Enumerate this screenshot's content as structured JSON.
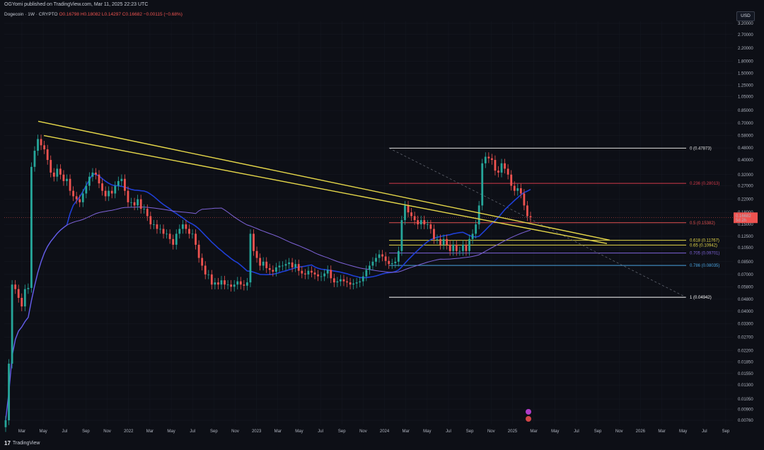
{
  "header": {
    "publish_line": "OGYomi published on TradingView.com, Mar 11, 2025 22:23 UTC"
  },
  "legend": {
    "symbol": "Dogecoin · 1W · CRYPTO",
    "open": "O0.16798",
    "high": "H0.18082",
    "low": "L0.14297",
    "close": "C0.16682",
    "change": "−0.00115 (−0.68%)"
  },
  "currency_button": "USD",
  "footer": {
    "brand": "TradingView",
    "logo_mark": "17"
  },
  "colors": {
    "background": "#0d0f16",
    "up_candle": "#26a69a",
    "down_candle": "#ef5350",
    "trendline": "#e6d84a",
    "ma_blue": "#1f3fd6",
    "ma_purple": "#7e63d8"
  },
  "chart_data": {
    "type": "candlestick",
    "title": "",
    "y_scale": "log",
    "y_ticks": [
      "3.20000",
      "2.70000",
      "2.20000",
      "1.80000",
      "1.50000",
      "1.25000",
      "1.05000",
      "0.85000",
      "0.70000",
      "0.58000",
      "0.48000",
      "0.40000",
      "0.32000",
      "0.27000",
      "0.22000",
      "0.18000",
      "0.15000",
      "0.12500",
      "0.10500",
      "0.08500",
      "0.07000",
      "0.05800",
      "0.04800",
      "0.04000",
      "0.03300",
      "0.02700",
      "0.02200",
      "0.01850",
      "0.01550",
      "0.01300",
      "0.01050",
      "0.00900",
      "0.00760"
    ],
    "x_ticks": [
      "Mar",
      "May",
      "Jul",
      "Sep",
      "Nov",
      "2022",
      "Mar",
      "May",
      "Jul",
      "Sep",
      "Nov",
      "2023",
      "Mar",
      "May",
      "Jul",
      "Sep",
      "Nov",
      "2024",
      "Mar",
      "May",
      "Jul",
      "Sep",
      "Nov",
      "2025",
      "Mar",
      "May",
      "Jul",
      "Sep",
      "Nov",
      "2026",
      "Mar",
      "May",
      "Jul",
      "Sep"
    ],
    "current_price": "0.16682",
    "countdown": "5d 2h",
    "fib_levels": [
      {
        "label": "0 (0.47873)",
        "value": 0.47873,
        "color": "#e0e0e0"
      },
      {
        "label": "0.236 (0.28013)",
        "value": 0.28013,
        "color": "#d33a4a"
      },
      {
        "label": "0.5 (0.15382)",
        "value": 0.15382,
        "color": "#e05050"
      },
      {
        "label": "0.618 (0.11767)",
        "value": 0.11767,
        "color": "#e6d84a"
      },
      {
        "label": "0.65 (0.10942)",
        "value": 0.10942,
        "color": "#e6d84a"
      },
      {
        "label": "0.705 (0.09701)",
        "value": 0.09701,
        "color": "#7e63d8"
      },
      {
        "label": "0.786 (0.08035)",
        "value": 0.08035,
        "color": "#4aa3df"
      },
      {
        "label": "1 (0.04942)",
        "value": 0.04942,
        "color": "#ffffff"
      }
    ],
    "series": [
      {
        "name": "",
        "closes": [
          0.0076,
          0.018,
          0.06,
          0.056,
          0.049,
          0.043,
          0.056,
          0.057,
          0.36,
          0.46,
          0.55,
          0.5,
          0.47,
          0.4,
          0.33,
          0.31,
          0.35,
          0.32,
          0.29,
          0.3,
          0.25,
          0.23,
          0.22,
          0.21,
          0.24,
          0.27,
          0.31,
          0.33,
          0.32,
          0.28,
          0.25,
          0.23,
          0.25,
          0.24,
          0.27,
          0.29,
          0.3,
          0.25,
          0.21,
          0.21,
          0.2,
          0.22,
          0.19,
          0.19,
          0.17,
          0.15,
          0.15,
          0.14,
          0.14,
          0.13,
          0.13,
          0.12,
          0.11,
          0.13,
          0.14,
          0.15,
          0.14,
          0.13,
          0.13,
          0.11,
          0.09,
          0.08,
          0.07,
          0.07,
          0.06,
          0.062,
          0.06,
          0.064,
          0.06,
          0.06,
          0.058,
          0.06,
          0.063,
          0.06,
          0.059,
          0.062,
          0.13,
          0.1,
          0.09,
          0.08,
          0.085,
          0.077,
          0.075,
          0.073,
          0.078,
          0.08,
          0.08,
          0.082,
          0.084,
          0.078,
          0.082,
          0.074,
          0.071,
          0.07,
          0.074,
          0.072,
          0.07,
          0.068,
          0.068,
          0.071,
          0.075,
          0.066,
          0.062,
          0.063,
          0.065,
          0.063,
          0.062,
          0.06,
          0.061,
          0.062,
          0.063,
          0.068,
          0.075,
          0.08,
          0.085,
          0.09,
          0.095,
          0.092,
          0.086,
          0.082,
          0.083,
          0.085,
          0.1,
          0.16,
          0.2,
          0.18,
          0.17,
          0.16,
          0.15,
          0.16,
          0.15,
          0.15,
          0.14,
          0.12,
          0.12,
          0.11,
          0.12,
          0.11,
          0.1,
          0.11,
          0.1,
          0.1,
          0.11,
          0.1,
          0.12,
          0.13,
          0.15,
          0.2,
          0.38,
          0.42,
          0.41,
          0.4,
          0.34,
          0.33,
          0.38,
          0.35,
          0.32,
          0.27,
          0.25,
          0.26,
          0.24,
          0.2,
          0.17,
          0.16682
        ]
      }
    ]
  }
}
